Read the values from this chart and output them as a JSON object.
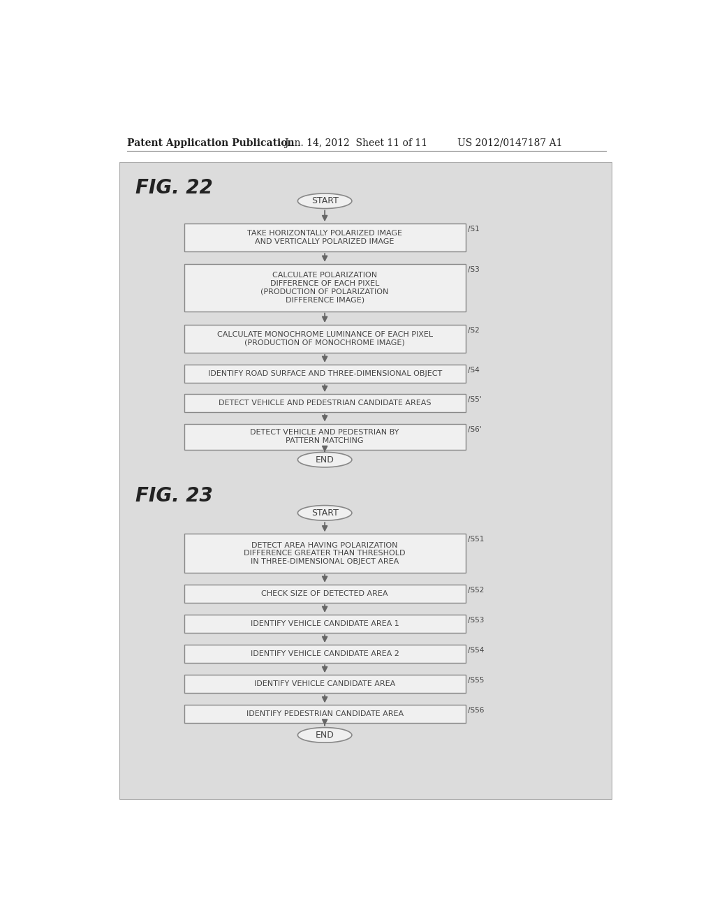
{
  "background_color": "#dcdcdc",
  "page_bg": "#ffffff",
  "header_text": "Patent Application Publication",
  "header_date": "Jun. 14, 2012  Sheet 11 of 11",
  "header_patent": "US 2012/0147187 A1",
  "fig22_label": "FIG. 22",
  "fig23_label": "FIG. 23",
  "box_edge_color": "#888888",
  "box_fill_color": "#f0f0f0",
  "text_color": "#444444",
  "arrow_color": "#666666",
  "font_size_step": 8.0,
  "font_size_fig": 20,
  "font_size_header": 10
}
